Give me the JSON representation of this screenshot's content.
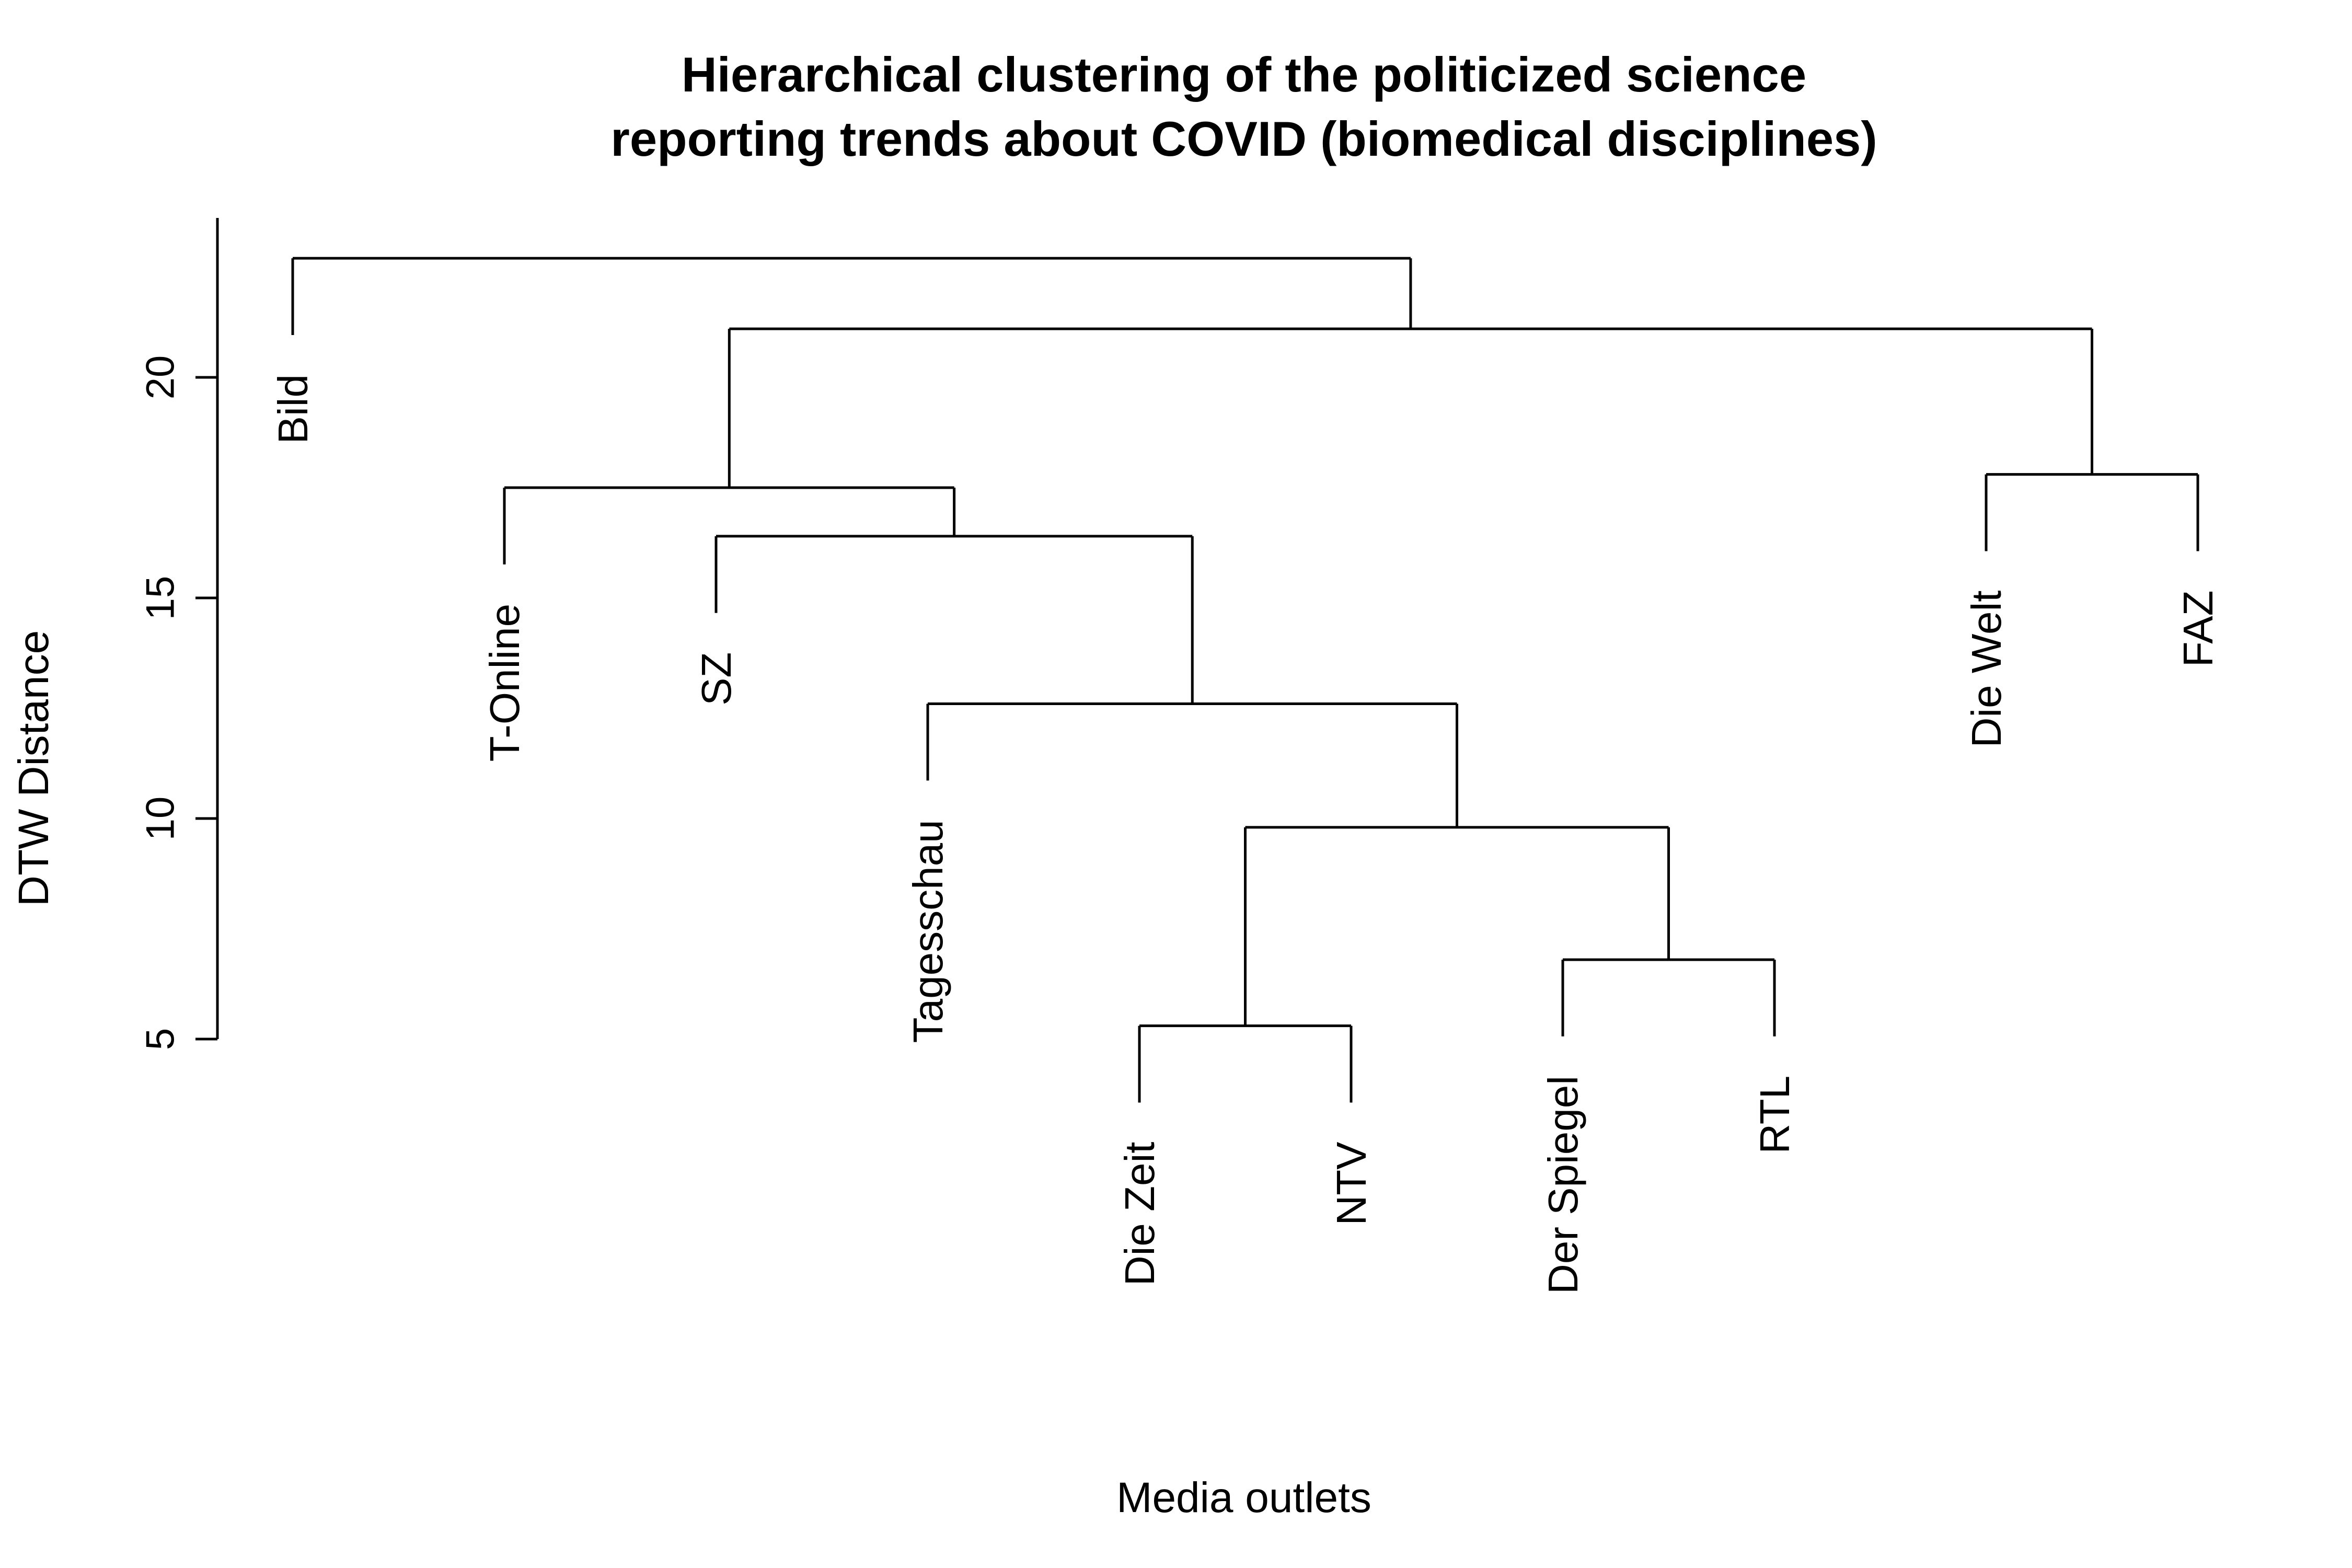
{
  "chart_data": {
    "type": "dendrogram",
    "title_lines": [
      "Hierarchical clustering of the politicized science",
      "reporting trends about COVID (biomedical disciplines)"
    ],
    "xlabel": "Media outlets",
    "ylabel": "DTW Distance",
    "yticks": [
      5,
      10,
      15,
      20
    ],
    "leaves": [
      "Bild",
      "T-Online",
      "SZ",
      "Tagesschau",
      "Die Zeit",
      "NTV",
      "Der Spiegel",
      "RTL",
      "Die Welt",
      "FAZ"
    ],
    "merges": [
      {
        "left": "Die Zeit",
        "right": "NTV",
        "height": 5.3
      },
      {
        "left": "Der Spiegel",
        "right": "RTL",
        "height": 6.8
      },
      {
        "left": "Die Zeit+NTV",
        "right": "Der Spiegel+RTL",
        "height": 9.8
      },
      {
        "left": "Tagesschau",
        "right": "Die Zeit+NTV+Der Spiegel+RTL",
        "height": 12.6
      },
      {
        "left": "SZ",
        "right": "Tagesschau+…",
        "height": 16.4
      },
      {
        "left": "T-Online",
        "right": "SZ+…",
        "height": 17.5
      },
      {
        "left": "Die Welt",
        "right": "FAZ",
        "height": 17.8
      },
      {
        "left": "T-Online+…",
        "right": "Die Welt+FAZ",
        "height": 21.1
      },
      {
        "left": "Bild",
        "right": "rest",
        "height": 22.7
      }
    ]
  }
}
